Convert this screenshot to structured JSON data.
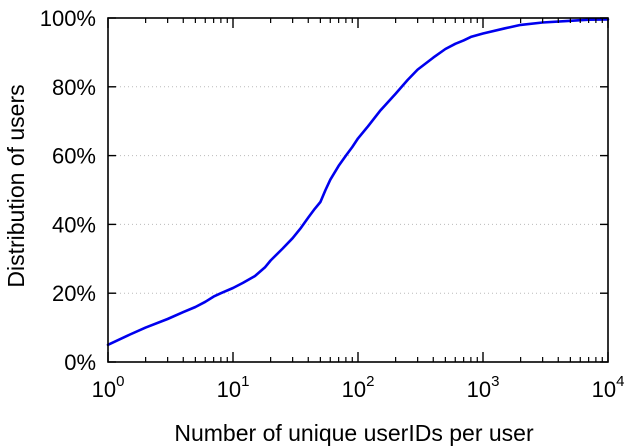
{
  "chart_data": {
    "type": "line",
    "title": "",
    "xlabel": "Number of unique userIDs per user",
    "ylabel": "Distribution of users",
    "x_scale": "log",
    "xlim": [
      1,
      10000
    ],
    "ylim": [
      0,
      100
    ],
    "x_ticks": [
      {
        "base": "10",
        "exp": "0",
        "value": 1
      },
      {
        "base": "10",
        "exp": "1",
        "value": 10
      },
      {
        "base": "10",
        "exp": "2",
        "value": 100
      },
      {
        "base": "10",
        "exp": "3",
        "value": 1000
      },
      {
        "base": "10",
        "exp": "4",
        "value": 10000
      }
    ],
    "y_ticks": [
      {
        "label": "0%",
        "value": 0
      },
      {
        "label": "20%",
        "value": 20
      },
      {
        "label": "40%",
        "value": 40
      },
      {
        "label": "60%",
        "value": 60
      },
      {
        "label": "80%",
        "value": 80
      },
      {
        "label": "100%",
        "value": 100
      }
    ],
    "grid": "horizontal-dotted",
    "legend": "none",
    "series": [
      {
        "color": "#0000ee",
        "x": [
          1,
          1.5,
          2,
          3,
          4,
          5,
          6,
          7,
          8,
          10,
          12,
          15,
          18,
          20,
          25,
          30,
          35,
          40,
          45,
          50,
          55,
          60,
          70,
          80,
          90,
          100,
          120,
          150,
          200,
          250,
          300,
          400,
          500,
          600,
          700,
          800,
          1000,
          1500,
          2000,
          3000,
          5000,
          7000,
          10000
        ],
        "y": [
          5,
          8,
          10,
          12.5,
          14.5,
          16,
          17.5,
          19,
          20,
          21.5,
          23,
          25,
          27.5,
          29.5,
          33,
          36,
          39,
          42,
          44.5,
          46.5,
          50,
          53,
          57,
          60,
          62.5,
          65,
          68.5,
          73,
          78,
          82,
          85,
          88.5,
          91,
          92.5,
          93.5,
          94.5,
          95.5,
          97,
          98,
          98.7,
          99.2,
          99.5,
          99.6
        ]
      }
    ]
  }
}
